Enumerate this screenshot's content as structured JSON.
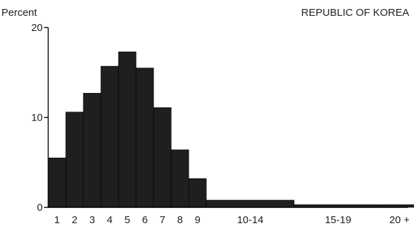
{
  "chart_data": {
    "type": "bar",
    "title": "REPUBLIC OF KOREA",
    "ylabel": "Percent",
    "xlabel": "",
    "ylim": [
      0,
      20
    ],
    "y_ticks": [
      "0",
      "10",
      "20"
    ],
    "categories": [
      "1",
      "2",
      "3",
      "4",
      "5",
      "6",
      "7",
      "8",
      "9",
      "10-14",
      "15-19",
      "20+"
    ],
    "tick_labels": [
      "1",
      "2",
      "3",
      "4",
      "5",
      "6",
      "7",
      "8",
      "9",
      "10-14",
      "15-19",
      "20 +"
    ],
    "bar_spans": [
      [
        0.5,
        1.5
      ],
      [
        1.5,
        2.5
      ],
      [
        2.5,
        3.5
      ],
      [
        3.5,
        4.5
      ],
      [
        4.5,
        5.5
      ],
      [
        5.5,
        6.5
      ],
      [
        6.5,
        7.5
      ],
      [
        7.5,
        8.5
      ],
      [
        8.5,
        9.5
      ],
      [
        9.5,
        14.5
      ],
      [
        14.5,
        19.5
      ],
      [
        19.5,
        21.5
      ]
    ],
    "values": [
      5.5,
      10.6,
      12.7,
      15.7,
      17.3,
      15.5,
      11.1,
      6.4,
      3.2,
      0.8,
      0.3,
      0.3
    ],
    "bar_color": "#1f1f1f"
  }
}
